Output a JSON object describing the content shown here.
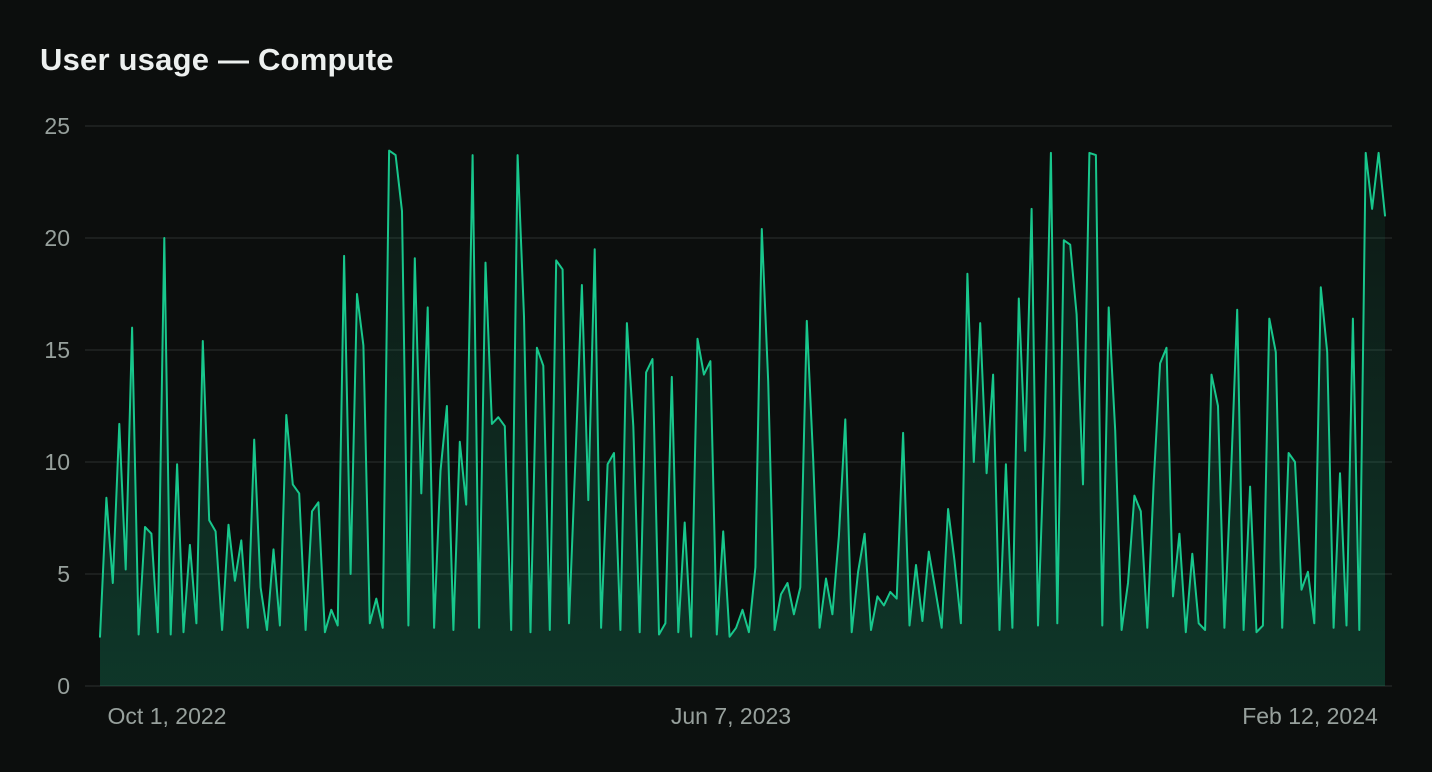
{
  "header": {
    "title": "User usage — Compute"
  },
  "theme": {
    "background": "#0c0e0d",
    "title_color": "#edf0ef",
    "line_color": "#18c78c",
    "fill_color_top": "rgba(24,199,140,0.05)",
    "fill_color_bottom": "rgba(24,199,140,0.22)",
    "grid_color": "#2b302e",
    "axis_label_color": "#97a09c"
  },
  "chart_data": {
    "type": "area",
    "title": "User usage — Compute",
    "series_name": "Compute",
    "xlabel": "",
    "ylabel": "",
    "ylim": [
      0,
      25
    ],
    "y_ticks": [
      0,
      5,
      10,
      15,
      20,
      25
    ],
    "y_tick_labels": [
      "0",
      "5",
      "10",
      "15",
      "20",
      "25"
    ],
    "x_tick_labels": [
      "Oct 1, 2022",
      "Jun 7, 2023",
      "Feb 12, 2024"
    ],
    "grid": "horizontal",
    "legend_position": "none",
    "values": [
      2.2,
      8.4,
      4.6,
      11.7,
      5.2,
      16,
      2.3,
      7.1,
      6.8,
      2.4,
      20,
      2.3,
      9.9,
      2.4,
      6.3,
      2.8,
      15.4,
      7.4,
      6.9,
      2.5,
      7.2,
      4.7,
      6.5,
      2.6,
      11,
      4.4,
      2.5,
      6.1,
      2.7,
      12.1,
      9,
      8.6,
      2.5,
      7.8,
      8.2,
      2.4,
      3.4,
      2.7,
      19.2,
      5,
      17.5,
      15.2,
      2.8,
      3.9,
      2.6,
      23.9,
      23.7,
      21.2,
      2.7,
      19.1,
      8.6,
      16.9,
      2.6,
      9.6,
      12.5,
      2.5,
      10.9,
      8.1,
      23.7,
      2.6,
      18.9,
      11.7,
      12,
      11.6,
      2.5,
      23.7,
      16.5,
      2.4,
      15.1,
      14.3,
      2.5,
      19,
      18.6,
      2.8,
      10.2,
      17.9,
      8.3,
      19.5,
      2.6,
      9.9,
      10.4,
      2.5,
      16.2,
      11.6,
      2.4,
      14,
      14.6,
      2.3,
      2.8,
      13.8,
      2.4,
      7.3,
      2.2,
      15.5,
      13.9,
      14.5,
      2.3,
      6.9,
      2.2,
      2.6,
      3.4,
      2.4,
      5.3,
      20.4,
      13.6,
      2.5,
      4.1,
      4.6,
      3.2,
      4.4,
      16.3,
      10.1,
      2.6,
      4.8,
      3.2,
      6.7,
      11.9,
      2.4,
      5.1,
      6.8,
      2.5,
      4,
      3.6,
      4.2,
      3.9,
      11.3,
      2.7,
      5.4,
      2.9,
      6,
      4.3,
      2.6,
      7.9,
      5.6,
      2.8,
      18.4,
      10,
      16.2,
      9.5,
      13.9,
      2.5,
      9.9,
      2.6,
      17.3,
      10.5,
      21.3,
      2.7,
      11.2,
      23.8,
      2.8,
      19.9,
      19.7,
      16.6,
      9,
      23.8,
      23.7,
      2.7,
      16.9,
      11.4,
      2.5,
      4.6,
      8.5,
      7.8,
      2.6,
      9.1,
      14.4,
      15.1,
      4,
      6.8,
      2.4,
      5.9,
      2.8,
      2.5,
      13.9,
      12.5,
      2.6,
      9.2,
      16.8,
      2.5,
      8.9,
      2.4,
      2.7,
      16.4,
      14.9,
      2.6,
      10.4,
      10,
      4.3,
      5.1,
      2.8,
      17.8,
      14.9,
      2.6,
      9.5,
      2.7,
      16.4,
      2.5,
      23.8,
      21.3,
      23.8,
      21
    ]
  }
}
